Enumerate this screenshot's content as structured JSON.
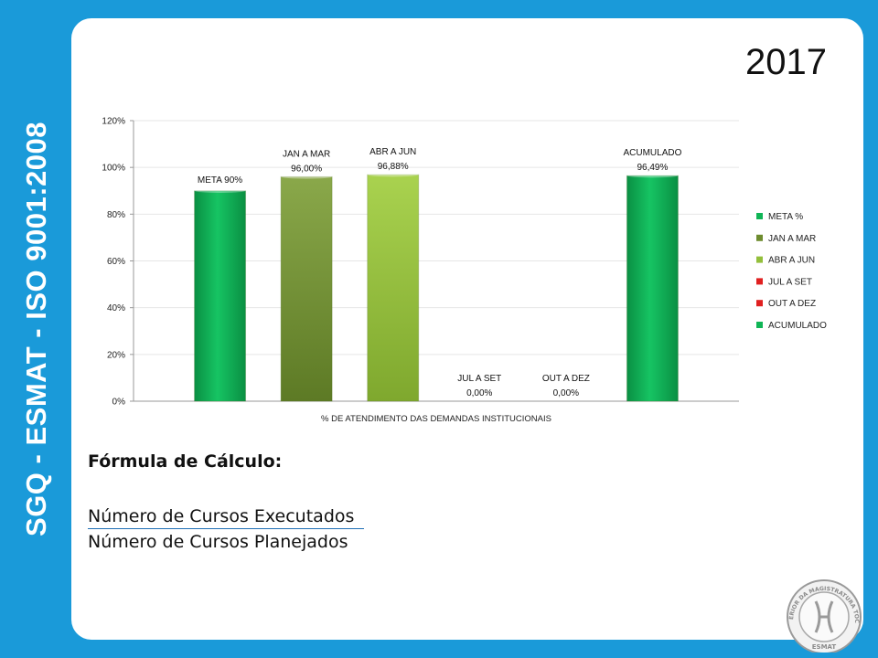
{
  "sidebar": {
    "text": "SGQ - ESMAT - ISO 9001:2008"
  },
  "header": {
    "year": "2017"
  },
  "formula": {
    "title": "Fórmula de Cálculo:",
    "numerator": "Número de Cursos Executados",
    "denominator": "Número de Cursos Planejados"
  },
  "seal": {
    "text": "ESCOLA SUPERIOR DA MAGISTRATURA TOCANTINENSE",
    "label": "ESMAT"
  },
  "chart_data": {
    "type": "bar",
    "xlabel": "% DE ATENDIMENTO  DAS DEMANDAS INSTITUCIONAIS",
    "ylim": [
      0,
      120
    ],
    "yticks": [
      0,
      20,
      40,
      60,
      80,
      100,
      120
    ],
    "ytick_labels": [
      "0%",
      "20%",
      "40%",
      "60%",
      "80%",
      "100%",
      "120%"
    ],
    "series": [
      {
        "name": "META %",
        "value": 90.0,
        "label_top": "META 90%",
        "label_bottom": "",
        "color": "#10b556"
      },
      {
        "name": "JAN A MAR",
        "value": 96.0,
        "label_top": "JAN A MAR",
        "label_bottom": "96,00%",
        "color": "#6e8c2f"
      },
      {
        "name": "ABR A JUN",
        "value": 96.88,
        "label_top": "ABR A JUN",
        "label_bottom": "96,88%",
        "color": "#93bf3b"
      },
      {
        "name": "JUL A SET",
        "value": 0.0,
        "label_top": "JUL A SET",
        "label_bottom": "0,00%",
        "color": "#e02020"
      },
      {
        "name": "OUT A DEZ",
        "value": 0.0,
        "label_top": "OUT A DEZ",
        "label_bottom": "0,00%",
        "color": "#e02020"
      },
      {
        "name": "ACUMULADO",
        "value": 96.49,
        "label_top": "ACUMULADO",
        "label_bottom": "96,49%",
        "color": "#10b556"
      }
    ],
    "legend": [
      "META %",
      "JAN A MAR",
      "ABR A JUN",
      "JUL A SET",
      "OUT A DEZ",
      "ACUMULADO"
    ],
    "legend_position": "right"
  }
}
